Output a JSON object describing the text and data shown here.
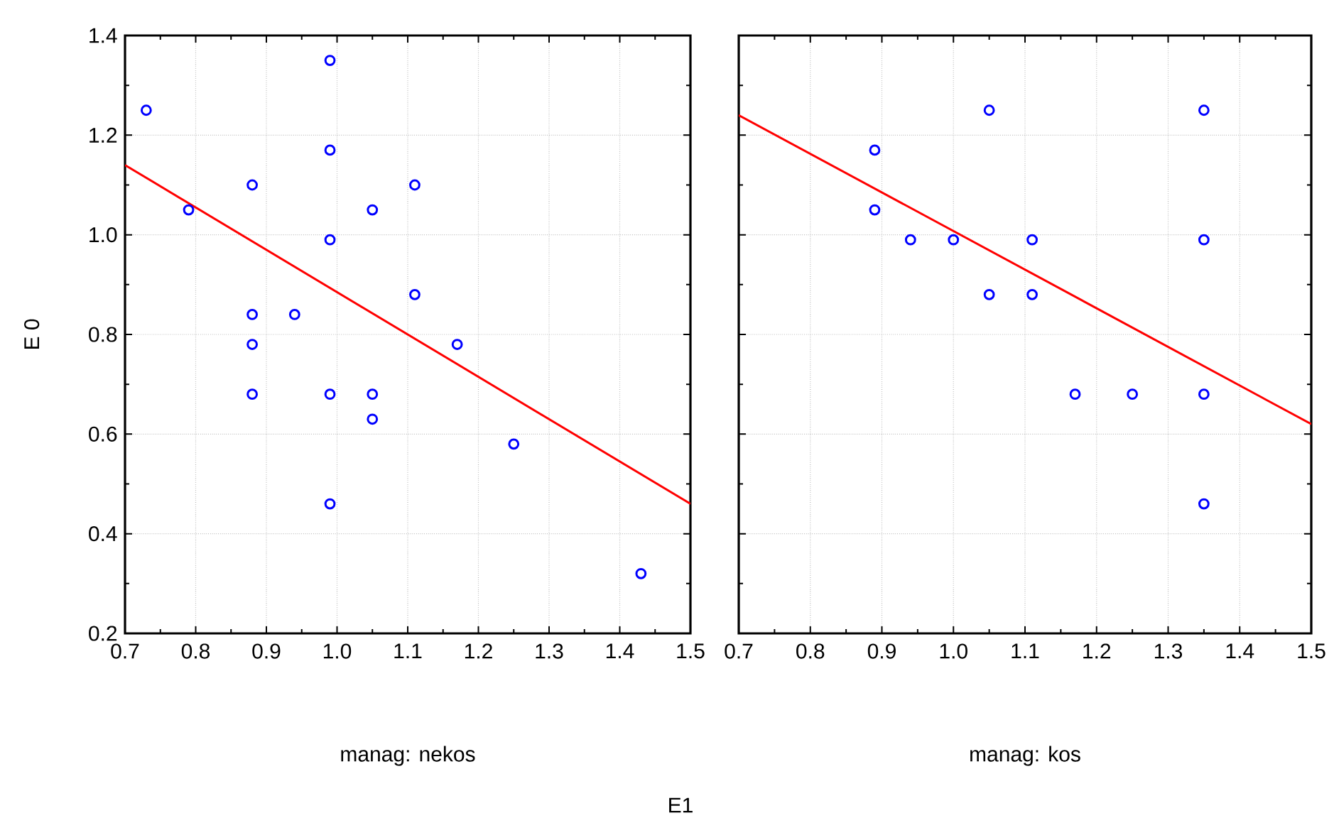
{
  "chart_data": [
    {
      "type": "scatter",
      "xlabel": "manag: nekos",
      "ylabel": "E 0",
      "grid": true,
      "xlim": [
        0.7,
        1.5
      ],
      "ylim": [
        0.2,
        1.4
      ],
      "xticks": [
        {
          "value": 0.7,
          "label": "0.7"
        },
        {
          "value": 0.8,
          "label": "0.8"
        },
        {
          "value": 0.9,
          "label": "0.9"
        },
        {
          "value": 1.0,
          "label": "1.0"
        },
        {
          "value": 1.1,
          "label": "1.1"
        },
        {
          "value": 1.2,
          "label": "1.2"
        },
        {
          "value": 1.3,
          "label": "1.3"
        },
        {
          "value": 1.4,
          "label": "1.4"
        },
        {
          "value": 1.5,
          "label": "1.5"
        }
      ],
      "yticks": [
        {
          "value": 0.2,
          "label": "0.2"
        },
        {
          "value": 0.4,
          "label": "0.4"
        },
        {
          "value": 0.6,
          "label": "0.6"
        },
        {
          "value": 0.8,
          "label": "0.8"
        },
        {
          "value": 1.0,
          "label": "1.0"
        },
        {
          "value": 1.2,
          "label": "1.2"
        },
        {
          "value": 1.4,
          "label": "1.4"
        }
      ],
      "series": [
        {
          "color": "#0000ff",
          "marker": "circle",
          "x": [
            0.73,
            0.99,
            0.99,
            0.88,
            1.11,
            0.79,
            1.05,
            0.99,
            1.11,
            0.88,
            0.94,
            0.88,
            1.17,
            0.88,
            0.99,
            1.05,
            1.05,
            1.25,
            0.99,
            1.43
          ],
          "values": [
            1.25,
            1.35,
            1.17,
            1.1,
            1.1,
            1.05,
            1.05,
            0.99,
            0.88,
            0.84,
            0.84,
            0.78,
            0.78,
            0.68,
            0.68,
            0.68,
            0.63,
            0.58,
            0.46,
            0.32
          ]
        },
        {
          "type": "line",
          "color": "#ff0000",
          "x": [
            0.7,
            1.5
          ],
          "values": [
            1.14,
            0.46
          ]
        }
      ]
    },
    {
      "type": "scatter",
      "xlabel": "manag: kos",
      "grid": true,
      "tick_labels": "x",
      "annotations": [
        "E1"
      ],
      "xlim": [
        0.7,
        1.5
      ],
      "ylim": [
        0.2,
        1.4
      ],
      "xticks": [
        {
          "value": 0.7,
          "label": "0.7"
        },
        {
          "value": 0.8,
          "label": "0.8"
        },
        {
          "value": 0.9,
          "label": "0.9"
        },
        {
          "value": 1.0,
          "label": "1.0"
        },
        {
          "value": 1.1,
          "label": "1.1"
        },
        {
          "value": 1.2,
          "label": "1.2"
        },
        {
          "value": 1.3,
          "label": "1.3"
        },
        {
          "value": 1.4,
          "label": "1.4"
        },
        {
          "value": 1.5,
          "label": "1.5"
        }
      ],
      "yticks": [
        {
          "value": 0.2,
          "label": null
        },
        {
          "value": 0.4,
          "label": null
        },
        {
          "value": 0.6,
          "label": null
        },
        {
          "value": 0.8,
          "label": null
        },
        {
          "value": 1.0,
          "label": null
        },
        {
          "value": 1.2,
          "label": null
        },
        {
          "value": 1.4,
          "label": null
        }
      ],
      "series": [
        {
          "color": "#0000ff",
          "marker": "circle",
          "x": [
            1.05,
            1.35,
            0.89,
            0.89,
            0.94,
            1.0,
            1.11,
            1.35,
            1.05,
            1.11,
            1.17,
            1.25,
            1.35,
            1.35
          ],
          "values": [
            1.25,
            1.25,
            1.17,
            1.05,
            0.99,
            0.99,
            0.99,
            0.99,
            0.88,
            0.88,
            0.68,
            0.68,
            0.68,
            0.46
          ]
        },
        {
          "type": "line",
          "color": "#ff0000",
          "x": [
            0.7,
            1.5
          ],
          "values": [
            1.24,
            0.62
          ]
        }
      ]
    }
  ]
}
